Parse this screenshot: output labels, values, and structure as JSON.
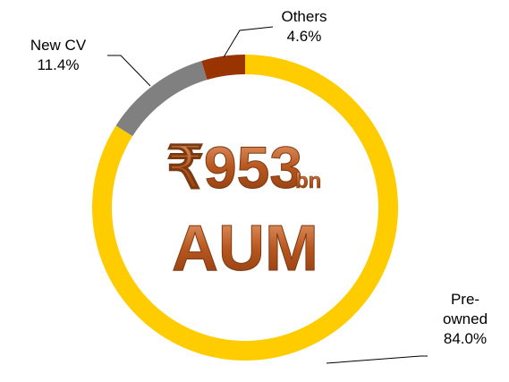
{
  "chart_data": {
    "type": "donut",
    "categories": [
      "Pre-owned",
      "New CV",
      "Others"
    ],
    "values": [
      84.0,
      11.4,
      4.6
    ],
    "value_labels": [
      "84.0%",
      "11.4%",
      "4.6%"
    ],
    "colors": [
      "#FFCC00",
      "#808080",
      "#993300"
    ],
    "center_value": "₹953",
    "center_unit": "bn",
    "center_label": "AUM"
  }
}
